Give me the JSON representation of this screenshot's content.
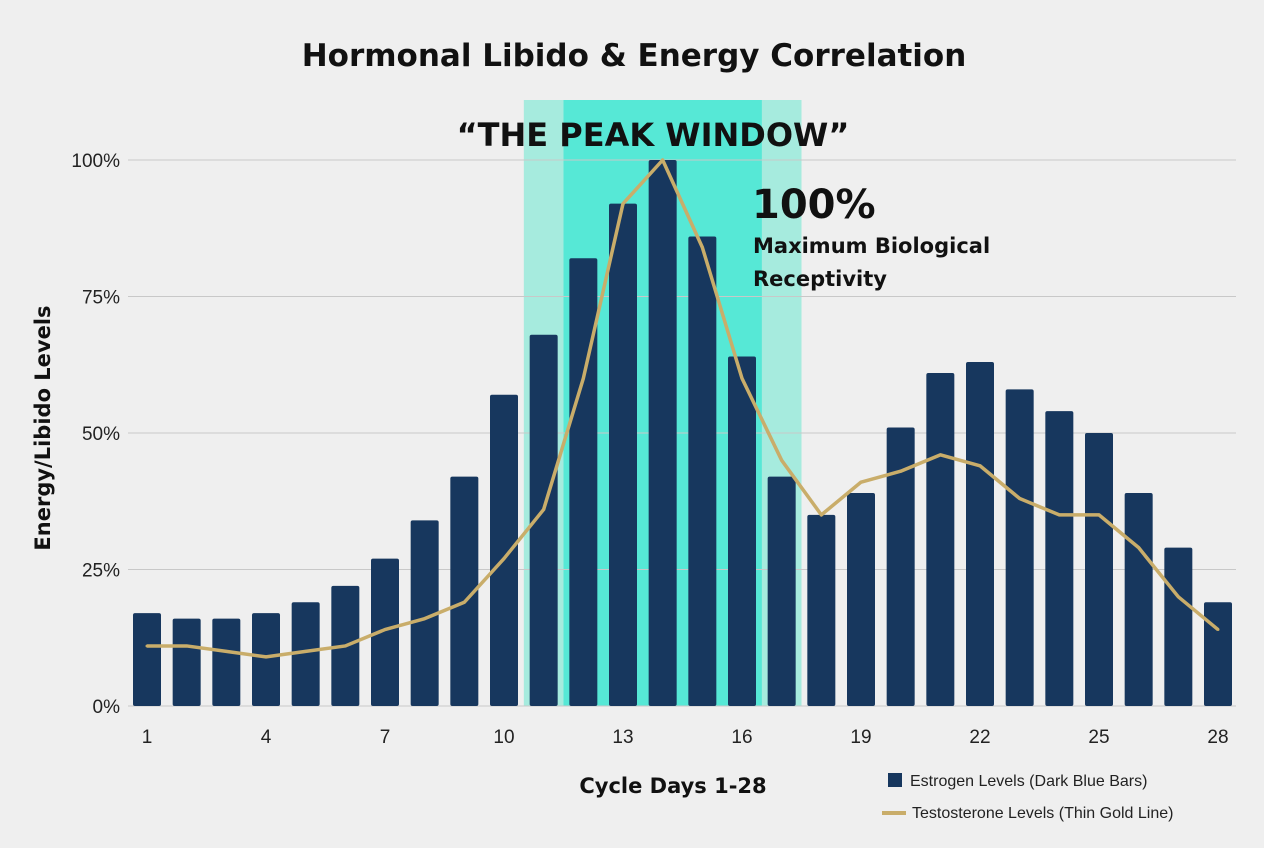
{
  "chart_data": {
    "type": "bar",
    "title": "Hormonal Libido & Energy Correlation",
    "xlabel": "Cycle Days 1-28",
    "ylabel": "Energy/Libido Levels",
    "ylim": [
      0,
      100
    ],
    "yticks": [
      0,
      25,
      50,
      75,
      100
    ],
    "ytick_labels": [
      "0%",
      "25%",
      "50%",
      "75%",
      "100%"
    ],
    "xtick_labels": [
      "1",
      "4",
      "7",
      "10",
      "13",
      "16",
      "19",
      "22",
      "25",
      "28"
    ],
    "xticks": [
      1,
      4,
      7,
      10,
      13,
      16,
      19,
      22,
      25,
      28
    ],
    "x": [
      1,
      2,
      3,
      4,
      5,
      6,
      7,
      8,
      9,
      10,
      11,
      12,
      13,
      14,
      15,
      16,
      17,
      18,
      19,
      20,
      21,
      22,
      23,
      24,
      25,
      26,
      27,
      28
    ],
    "grid": true,
    "legend_placement": "bottom-right",
    "series": [
      {
        "name": "Estrogen Levels (Dark Blue Bars)",
        "type": "bar",
        "color": "#17375e",
        "values": [
          17,
          16,
          16,
          17,
          19,
          22,
          27,
          34,
          42,
          57,
          68,
          82,
          92,
          100,
          86,
          64,
          42,
          35,
          39,
          51,
          61,
          63,
          58,
          54,
          50,
          39,
          29,
          19
        ]
      },
      {
        "name": "Testosterone Levels (Thin Gold Line)",
        "type": "line",
        "color": "#c9ad6a",
        "values": [
          11,
          11,
          10,
          9,
          10,
          11,
          14,
          16,
          19,
          27,
          36,
          60,
          92,
          100,
          84,
          60,
          45,
          35,
          41,
          43,
          46,
          44,
          38,
          35,
          35,
          29,
          20,
          14
        ]
      }
    ],
    "highlight": {
      "label": "“THE PEAK WINDOW”",
      "outer_range": [
        10.5,
        17.5
      ],
      "inner_range": [
        11.5,
        16.5
      ],
      "outer_color": "#a6ebde",
      "inner_color": "#56e8d6"
    },
    "annotation": {
      "value": "100%",
      "line1": "Maximum Biological",
      "line2": "Receptivity"
    }
  }
}
